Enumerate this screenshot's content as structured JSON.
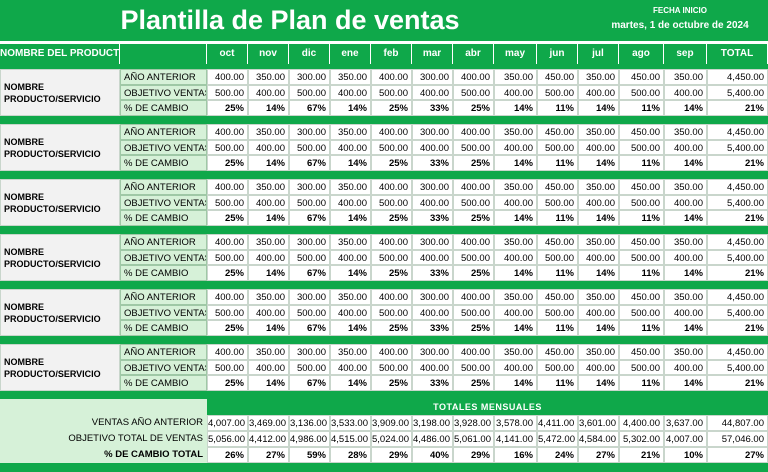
{
  "header": {
    "title": "Plantilla de Plan de ventas",
    "start_date_label": "FECHA INICIO",
    "start_date": "martes, 1 de octubre de 2024"
  },
  "table": {
    "columns": [
      "NOMBRE DEL PRODUCTO",
      "oct",
      "nov",
      "dic",
      "ene",
      "feb",
      "mar",
      "abr",
      "may",
      "jun",
      "jul",
      "ago",
      "sep",
      "TOTAL"
    ],
    "products": [
      {
        "name": "NOMBRE PRODUCTO/SERVICIO",
        "rows": [
          {
            "label": "AÑO ANTERIOR",
            "cells": [
              "400.00",
              "350.00",
              "300.00",
              "350.00",
              "400.00",
              "300.00",
              "400.00",
              "350.00",
              "450.00",
              "350.00",
              "450.00",
              "350.00",
              "4,450.00"
            ]
          },
          {
            "label": "OBJETIVO VENTAS",
            "cells": [
              "500.00",
              "400.00",
              "500.00",
              "400.00",
              "500.00",
              "400.00",
              "500.00",
              "400.00",
              "500.00",
              "400.00",
              "500.00",
              "400.00",
              "5,400.00"
            ]
          },
          {
            "label": "% DE CAMBIO",
            "cells": [
              "25%",
              "14%",
              "67%",
              "14%",
              "25%",
              "33%",
              "25%",
              "14%",
              "11%",
              "14%",
              "11%",
              "14%",
              "21%"
            ]
          }
        ]
      },
      {
        "name": "NOMBRE PRODUCTO/SERVICIO",
        "rows": [
          {
            "label": "AÑO ANTERIOR",
            "cells": [
              "400.00",
              "350.00",
              "300.00",
              "350.00",
              "400.00",
              "300.00",
              "400.00",
              "350.00",
              "450.00",
              "350.00",
              "450.00",
              "350.00",
              "4,450.00"
            ]
          },
          {
            "label": "OBJETIVO VENTAS",
            "cells": [
              "500.00",
              "400.00",
              "500.00",
              "400.00",
              "500.00",
              "400.00",
              "500.00",
              "400.00",
              "500.00",
              "400.00",
              "500.00",
              "400.00",
              "5,400.00"
            ]
          },
          {
            "label": "% DE CAMBIO",
            "cells": [
              "25%",
              "14%",
              "67%",
              "14%",
              "25%",
              "33%",
              "25%",
              "14%",
              "11%",
              "14%",
              "11%",
              "14%",
              "21%"
            ]
          }
        ]
      },
      {
        "name": "NOMBRE PRODUCTO/SERVICIO",
        "rows": [
          {
            "label": "AÑO ANTERIOR",
            "cells": [
              "400.00",
              "350.00",
              "300.00",
              "350.00",
              "400.00",
              "300.00",
              "400.00",
              "350.00",
              "450.00",
              "350.00",
              "450.00",
              "350.00",
              "4,450.00"
            ]
          },
          {
            "label": "OBJETIVO VENTAS",
            "cells": [
              "500.00",
              "400.00",
              "500.00",
              "400.00",
              "500.00",
              "400.00",
              "500.00",
              "400.00",
              "500.00",
              "400.00",
              "500.00",
              "400.00",
              "5,400.00"
            ]
          },
          {
            "label": "% DE CAMBIO",
            "cells": [
              "25%",
              "14%",
              "67%",
              "14%",
              "25%",
              "33%",
              "25%",
              "14%",
              "11%",
              "14%",
              "11%",
              "14%",
              "21%"
            ]
          }
        ]
      },
      {
        "name": "NOMBRE PRODUCTO/SERVICIO",
        "rows": [
          {
            "label": "AÑO ANTERIOR",
            "cells": [
              "400.00",
              "350.00",
              "300.00",
              "350.00",
              "400.00",
              "300.00",
              "400.00",
              "350.00",
              "450.00",
              "350.00",
              "450.00",
              "350.00",
              "4,450.00"
            ]
          },
          {
            "label": "OBJETIVO VENTAS",
            "cells": [
              "500.00",
              "400.00",
              "500.00",
              "400.00",
              "500.00",
              "400.00",
              "500.00",
              "400.00",
              "500.00",
              "400.00",
              "500.00",
              "400.00",
              "5,400.00"
            ]
          },
          {
            "label": "% DE CAMBIO",
            "cells": [
              "25%",
              "14%",
              "67%",
              "14%",
              "25%",
              "33%",
              "25%",
              "14%",
              "11%",
              "14%",
              "11%",
              "14%",
              "21%"
            ]
          }
        ]
      },
      {
        "name": "NOMBRE PRODUCTO/SERVICIO",
        "rows": [
          {
            "label": "AÑO ANTERIOR",
            "cells": [
              "400.00",
              "350.00",
              "300.00",
              "350.00",
              "400.00",
              "300.00",
              "400.00",
              "350.00",
              "450.00",
              "350.00",
              "450.00",
              "350.00",
              "4,450.00"
            ]
          },
          {
            "label": "OBJETIVO VENTAS",
            "cells": [
              "500.00",
              "400.00",
              "500.00",
              "400.00",
              "500.00",
              "400.00",
              "500.00",
              "400.00",
              "500.00",
              "400.00",
              "500.00",
              "400.00",
              "5,400.00"
            ]
          },
          {
            "label": "% DE CAMBIO",
            "cells": [
              "25%",
              "14%",
              "67%",
              "14%",
              "25%",
              "33%",
              "25%",
              "14%",
              "11%",
              "14%",
              "11%",
              "14%",
              "21%"
            ]
          }
        ]
      },
      {
        "name": "NOMBRE PRODUCTO/SERVICIO",
        "rows": [
          {
            "label": "AÑO ANTERIOR",
            "cells": [
              "400.00",
              "350.00",
              "300.00",
              "350.00",
              "400.00",
              "300.00",
              "400.00",
              "350.00",
              "450.00",
              "350.00",
              "450.00",
              "350.00",
              "4,450.00"
            ]
          },
          {
            "label": "OBJETIVO VENTAS",
            "cells": [
              "500.00",
              "400.00",
              "500.00",
              "400.00",
              "500.00",
              "400.00",
              "500.00",
              "400.00",
              "500.00",
              "400.00",
              "500.00",
              "400.00",
              "5,400.00"
            ]
          },
          {
            "label": "% DE CAMBIO",
            "cells": [
              "25%",
              "14%",
              "67%",
              "14%",
              "25%",
              "33%",
              "25%",
              "14%",
              "11%",
              "14%",
              "11%",
              "14%",
              "21%"
            ]
          }
        ]
      }
    ],
    "totals": {
      "title": "TOTALES MENSUALES",
      "rows": [
        {
          "label": "VENTAS AÑO ANTERIOR",
          "cells": [
            "4,007.00",
            "3,469.00",
            "3,136.00",
            "3,533.00",
            "3,909.00",
            "3,198.00",
            "3,928.00",
            "3,578.00",
            "4,411.00",
            "3,601.00",
            "4,400.00",
            "3,637.00",
            "44,807.00"
          ]
        },
        {
          "label": "OBJETIVO TOTAL DE VENTAS",
          "cells": [
            "5,056.00",
            "4,412.00",
            "4,986.00",
            "4,515.00",
            "5,024.00",
            "4,486.00",
            "5,061.00",
            "4,141.00",
            "5,472.00",
            "4,584.00",
            "5,302.00",
            "4,007.00",
            "57,046.00"
          ]
        },
        {
          "label": "% DE CAMBIO TOTAL",
          "cells": [
            "26%",
            "27%",
            "59%",
            "28%",
            "29%",
            "40%",
            "29%",
            "16%",
            "24%",
            "27%",
            "21%",
            "10%",
            "27%"
          ]
        }
      ]
    }
  }
}
